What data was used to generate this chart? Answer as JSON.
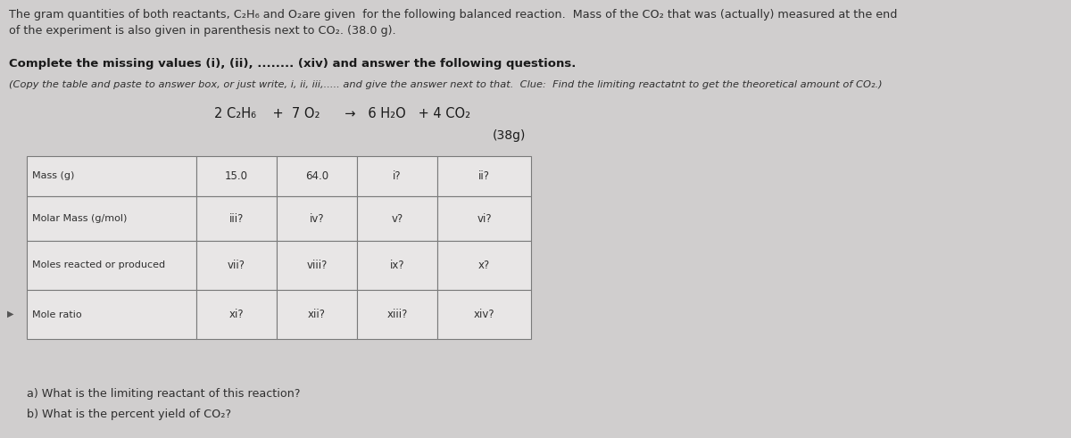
{
  "bg_color": "#d0cece",
  "text_color": "#2f2f2f",
  "bold_color": "#1a1a1a",
  "eq_color": "#1a1a1a",
  "table_bg": "#e8e6e6",
  "border_color": "#7a7a7a",
  "cell_text_color": "#2f2f2f",
  "line1": "The gram quantities of both reactants, C₂H₆ and O₂are given  for the following balanced reaction.  Mass of the CO₂ that was (actually) measured at the end",
  "line2": "of the experiment is also given in parenthesis next to CO₂. (38.0 g).",
  "bold_line": "Complete the missing values (i), (ii), ........ (xiv) and answer the following questions.",
  "italic_line": "(Copy the table and paste to answer box, or just write, i, ii, iii,..... and give the answer next to that.  Clue:  Find the limiting reactatnt to get the theoretical amount of CO₂.)",
  "equation": "2 C₂H₆    +  7 O₂      →   6 H₂O   + 4 CO₂",
  "eq_note": "(38g)",
  "table_rows": [
    [
      "Mass (g)",
      "15.0",
      "64.0",
      "i?",
      "ii?"
    ],
    [
      "Molar Mass (g/mol)",
      "iii?",
      "iv?",
      "v?",
      "vi?"
    ],
    [
      "Moles reacted or produced",
      "vii?",
      "viii?",
      "ix?",
      "x?"
    ],
    [
      "Mole ratio",
      "xi?",
      "xii?",
      "xiii?",
      "xiv?"
    ]
  ],
  "question_a": "a) What is the limiting reactant of this reaction?",
  "question_b": "b) What is the percent yield of CO₂?",
  "fig_w": 12.0,
  "fig_h": 4.91,
  "dpi": 100
}
